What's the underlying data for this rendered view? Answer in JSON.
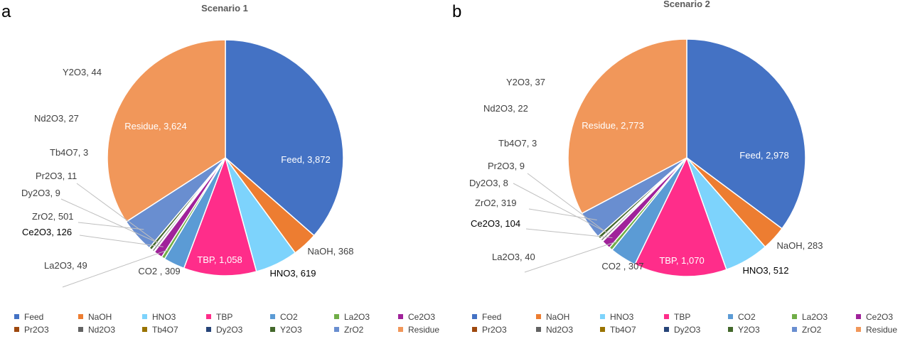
{
  "charts": [
    {
      "panel": "a",
      "title": "Scenario 1",
      "chart_data": {
        "type": "pie",
        "title": "Scenario 1",
        "slices": [
          {
            "label": "Feed",
            "value": 3872,
            "color": "#4472C4",
            "text": "Feed, 3,872"
          },
          {
            "label": "NaOH",
            "value": 368,
            "color": "#ED7D31",
            "text": "NaOH, 368"
          },
          {
            "label": "HNO3",
            "value": 619,
            "color": "#7DD3FC",
            "text": "HNO3, 619"
          },
          {
            "label": "TBP",
            "value": 1058,
            "color": "#FF2D8A",
            "text": "TBP, 1,058"
          },
          {
            "label": "CO2",
            "value": 309,
            "color": "#5B9BD5",
            "text": "CO2 , 309"
          },
          {
            "label": "La2O3",
            "value": 49,
            "color": "#70AD47",
            "text": "La2O3, 49"
          },
          {
            "label": "Ce2O3",
            "value": 126,
            "color": "#A0229A",
            "text": "Ce2O3, 126"
          },
          {
            "label": "Pr2O3",
            "value": 11,
            "color": "#9E480E",
            "text": "Pr2O3, 11"
          },
          {
            "label": "Nd2O3",
            "value": 27,
            "color": "#636363",
            "text": "Nd2O3, 27"
          },
          {
            "label": "Tb4O7",
            "value": 3,
            "color": "#997300",
            "text": "Tb4O7, 3"
          },
          {
            "label": "Dy2O3",
            "value": 9,
            "color": "#264478",
            "text": "Dy2O3, 9"
          },
          {
            "label": "Y2O3",
            "value": 44,
            "color": "#43682B",
            "text": "Y2O3, 44"
          },
          {
            "label": "ZrO2",
            "value": 501,
            "color": "#698ED0",
            "text": "ZrO2, 501"
          },
          {
            "label": "Residue",
            "value": 3624,
            "color": "#F1975A",
            "text": "Residue, 3,624"
          }
        ]
      }
    },
    {
      "panel": "b",
      "title": "Scenario 2",
      "chart_data": {
        "type": "pie",
        "title": "Scenario 2",
        "slices": [
          {
            "label": "Feed",
            "value": 2978,
            "color": "#4472C4",
            "text": "Feed, 2,978"
          },
          {
            "label": "NaOH",
            "value": 283,
            "color": "#ED7D31",
            "text": "NaOH, 283"
          },
          {
            "label": "HNO3",
            "value": 512,
            "color": "#7DD3FC",
            "text": "HNO3, 512"
          },
          {
            "label": "TBP",
            "value": 1070,
            "color": "#FF2D8A",
            "text": "TBP, 1,070"
          },
          {
            "label": "CO2",
            "value": 307,
            "color": "#5B9BD5",
            "text": "CO2 , 307"
          },
          {
            "label": "La2O3",
            "value": 40,
            "color": "#70AD47",
            "text": "La2O3, 40"
          },
          {
            "label": "Ce2O3",
            "value": 104,
            "color": "#A0229A",
            "text": "Ce2O3, 104"
          },
          {
            "label": "Pr2O3",
            "value": 9,
            "color": "#9E480E",
            "text": "Pr2O3, 9"
          },
          {
            "label": "Nd2O3",
            "value": 22,
            "color": "#636363",
            "text": "Nd2O3, 22"
          },
          {
            "label": "Tb4O7",
            "value": 3,
            "color": "#997300",
            "text": "Tb4O7, 3"
          },
          {
            "label": "Dy2O3",
            "value": 8,
            "color": "#264478",
            "text": "Dy2O3, 8"
          },
          {
            "label": "Y2O3",
            "value": 37,
            "color": "#43682B",
            "text": "Y2O3, 37"
          },
          {
            "label": "ZrO2",
            "value": 319,
            "color": "#698ED0",
            "text": "ZrO2, 319"
          },
          {
            "label": "Residue",
            "value": 2773,
            "color": "#F1975A",
            "text": "Residue, 2,773"
          }
        ]
      }
    }
  ],
  "legend": {
    "items": [
      {
        "label": "Feed",
        "color": "#4472C4"
      },
      {
        "label": "NaOH",
        "color": "#ED7D31"
      },
      {
        "label": "HNO3",
        "color": "#7DD3FC"
      },
      {
        "label": "TBP",
        "color": "#FF2D8A"
      },
      {
        "label": "CO2",
        "color": "#5B9BD5"
      },
      {
        "label": "La2O3",
        "color": "#70AD47"
      },
      {
        "label": "Ce2O3",
        "color": "#A0229A"
      },
      {
        "label": "Pr2O3",
        "color": "#9E480E"
      },
      {
        "label": "Nd2O3",
        "color": "#636363"
      },
      {
        "label": "Tb4O7",
        "color": "#997300"
      },
      {
        "label": "Dy2O3",
        "color": "#264478"
      },
      {
        "label": "Y2O3",
        "color": "#43682B"
      },
      {
        "label": "ZrO2",
        "color": "#698ED0"
      },
      {
        "label": "Residue",
        "color": "#F1975A"
      }
    ]
  }
}
